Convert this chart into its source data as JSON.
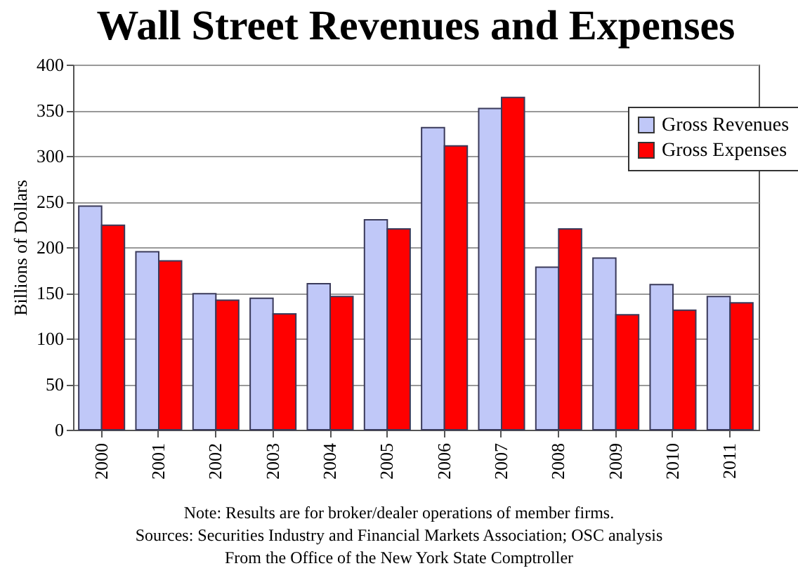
{
  "chart_data": {
    "type": "bar",
    "title": "Wall Street Revenues and Expenses",
    "ylabel": "Billions of Dollars",
    "categories": [
      "2000",
      "2001",
      "2002",
      "2003",
      "2004",
      "2005",
      "2006",
      "2007",
      "2008",
      "2009",
      "2010",
      "2011"
    ],
    "series": [
      {
        "name": "Gross Revenues",
        "color": "#c0c8f8",
        "values": [
          245,
          195,
          149,
          144,
          160,
          230,
          331,
          352,
          178,
          188,
          159,
          146
        ]
      },
      {
        "name": "Gross Expenses",
        "color": "#ff0000",
        "values": [
          224,
          185,
          142,
          127,
          146,
          220,
          311,
          364,
          220,
          126,
          131,
          139
        ]
      }
    ],
    "ylim": [
      0,
      400
    ],
    "yticks": [
      0,
      50,
      100,
      150,
      200,
      250,
      300,
      350,
      400
    ],
    "grid": "y",
    "legend": "top right",
    "annotations": [
      "Note: Results are for broker/dealer operations of member firms.",
      "Sources: Securities Industry and Financial Markets Association; OSC analysis",
      "From the Office of the New York State Comptroller"
    ]
  }
}
